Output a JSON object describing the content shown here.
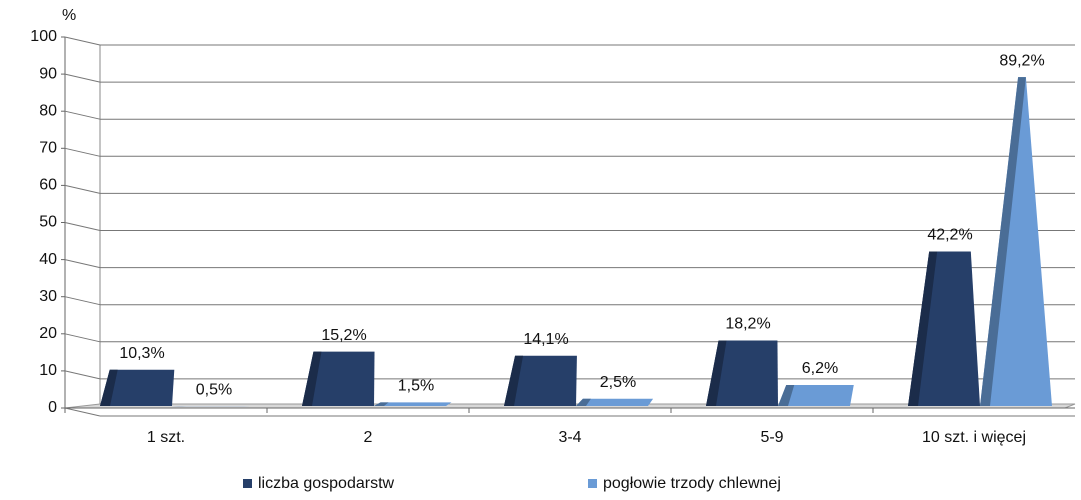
{
  "chart_data": {
    "type": "bar",
    "y_axis_label": "%",
    "categories": [
      "1 szt.",
      "2",
      "3-4",
      "5-9",
      "10 szt. i więcej"
    ],
    "series": [
      {
        "name": "liczba gospodarstw",
        "color": "#263f69",
        "values": [
          10.3,
          15.2,
          14.1,
          18.2,
          42.2
        ],
        "value_labels": [
          "10,3%",
          "15,2%",
          "14,1%",
          "18,2%",
          "42,2%"
        ]
      },
      {
        "name": "pogłowie trzody chlewnej",
        "color": "#6a9bd6",
        "values": [
          0.5,
          1.5,
          2.5,
          6.2,
          89.2
        ],
        "value_labels": [
          "0,5%",
          "1,5%",
          "2,5%",
          "6,2%",
          "89,2%"
        ]
      }
    ],
    "ylim": [
      0,
      100
    ],
    "yticks": [
      0,
      10,
      20,
      30,
      40,
      50,
      60,
      70,
      80,
      90,
      100
    ],
    "grid": true
  }
}
